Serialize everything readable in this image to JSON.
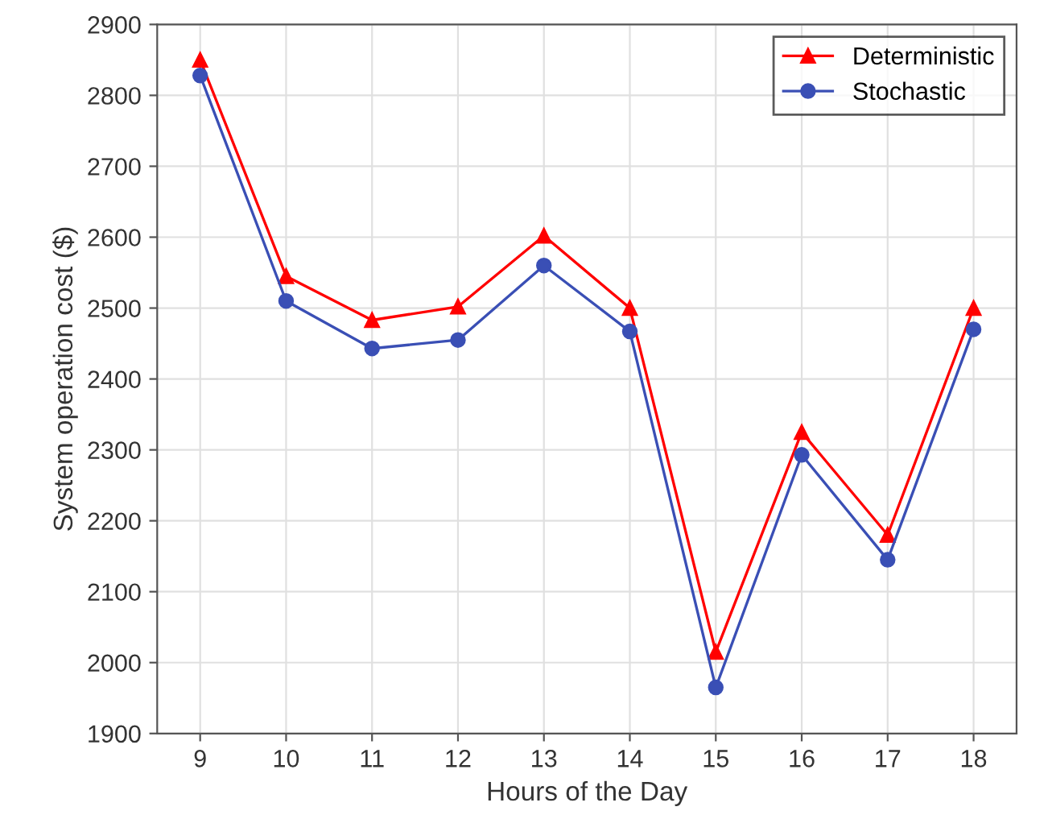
{
  "chart_data": {
    "type": "line",
    "xlabel": "Hours of the Day",
    "ylabel": "System operation cost ($)",
    "x": [
      9,
      10,
      11,
      12,
      13,
      14,
      15,
      16,
      17,
      18
    ],
    "series": [
      {
        "name": "Deterministic",
        "color": "#ff0000",
        "marker": "triangle",
        "values": [
          2850,
          2545,
          2483,
          2502,
          2602,
          2500,
          2015,
          2325,
          2180,
          2500
        ]
      },
      {
        "name": "Stochastic",
        "color": "#3a4fb5",
        "marker": "circle",
        "values": [
          2828,
          2510,
          2443,
          2455,
          2560,
          2467,
          1965,
          2293,
          2145,
          2470
        ]
      }
    ],
    "xlim": [
      8.5,
      18.5
    ],
    "xticks": [
      9,
      10,
      11,
      12,
      13,
      14,
      15,
      16,
      17,
      18
    ],
    "ylim": [
      1900,
      2900
    ],
    "yticks": [
      1900,
      2000,
      2100,
      2200,
      2300,
      2400,
      2500,
      2600,
      2700,
      2800,
      2900
    ],
    "grid": true,
    "legend": "top right",
    "line_style": "solid"
  }
}
